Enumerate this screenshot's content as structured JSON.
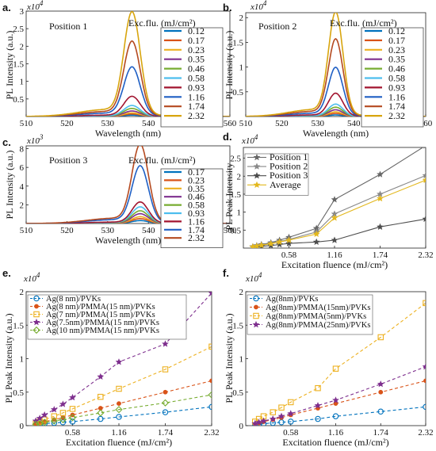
{
  "chart_data": [
    {
      "panel": "a.",
      "type": "line",
      "annotation": "Position 1",
      "xlabel": "Wavelength (nm)",
      "ylabel": "PL Intensity (a.u.)",
      "multiplier": "x10^4",
      "xlim": [
        510,
        560
      ],
      "ylim": [
        0,
        3
      ],
      "xticks": [
        "510",
        "520",
        "530",
        "540",
        "550",
        "560"
      ],
      "yticks": [
        {
          "v": 0.5,
          "label": "0.5"
        },
        {
          "v": 1,
          "label": "1"
        },
        {
          "v": 1.5,
          "label": "1.5"
        },
        {
          "v": 2,
          "label": "2"
        },
        {
          "v": 2.5,
          "label": "2.5"
        },
        {
          "v": 3,
          "label": "3"
        }
      ],
      "legend_title": "Exc.flu. (mJ/cm²)",
      "legend_position": "top-right",
      "peak_center": 536,
      "series": [
        {
          "name": "0.12",
          "color": "#0072BD",
          "peak": 0.04
        },
        {
          "name": "0.17",
          "color": "#D95319",
          "peak": 0.07
        },
        {
          "name": "0.23",
          "color": "#EDB120",
          "peak": 0.1
        },
        {
          "name": "0.35",
          "color": "#7E2F8E",
          "peak": 0.15
        },
        {
          "name": "0.46",
          "color": "#77AC30",
          "peak": 0.22
        },
        {
          "name": "0.58",
          "color": "#4DBEEE",
          "peak": 0.3
        },
        {
          "name": "0.93",
          "color": "#A2142F",
          "peak": 0.55
        },
        {
          "name": "1.16",
          "color": "#1F5FC4",
          "peak": 1.35
        },
        {
          "name": "1.74",
          "color": "#B4491F",
          "peak": 2.05
        },
        {
          "name": "2.32",
          "color": "#D8A50E",
          "peak": 2.85
        }
      ]
    },
    {
      "panel": "b.",
      "type": "line",
      "annotation": "Position 2",
      "xlabel": "Wavelength (nm)",
      "ylabel": "PL Intensity (a.u.)",
      "multiplier": "x10^4",
      "xlim": [
        510,
        560
      ],
      "ylim": [
        0,
        2.1
      ],
      "xticks": [
        "510",
        "520",
        "530",
        "540",
        "550",
        "560"
      ],
      "yticks": [
        {
          "v": 0.5,
          "label": "0.5"
        },
        {
          "v": 1,
          "label": "1"
        },
        {
          "v": 1.5,
          "label": "1.5"
        },
        {
          "v": 2,
          "label": "2"
        }
      ],
      "legend_title": "Exc.flu. (mJ/cm²)",
      "legend_position": "top-right",
      "peak_center": 535,
      "series": [
        {
          "name": "0.12",
          "color": "#0072BD",
          "peak": 0.03
        },
        {
          "name": "0.17",
          "color": "#D95319",
          "peak": 0.06
        },
        {
          "name": "0.23",
          "color": "#EDB120",
          "peak": 0.09
        },
        {
          "name": "0.35",
          "color": "#7E2F8E",
          "peak": 0.13
        },
        {
          "name": "0.46",
          "color": "#77AC30",
          "peak": 0.18
        },
        {
          "name": "0.58",
          "color": "#4DBEEE",
          "peak": 0.24
        },
        {
          "name": "0.93",
          "color": "#A2142F",
          "peak": 0.45
        },
        {
          "name": "1.16",
          "color": "#1F5FC4",
          "peak": 0.95
        },
        {
          "name": "1.74",
          "color": "#B4491F",
          "peak": 1.5
        },
        {
          "name": "2.32",
          "color": "#D8A50E",
          "peak": 2.02
        }
      ]
    },
    {
      "panel": "c.",
      "type": "line",
      "annotation": "Position 3",
      "xlabel": "Wavelength (nm)",
      "ylabel": "PL Intensity (a.u.)",
      "multiplier": "x10^3",
      "xlim": [
        510,
        560
      ],
      "ylim": [
        0,
        8.3
      ],
      "xticks": [
        "510",
        "520",
        "530",
        "540",
        "550",
        "560"
      ],
      "yticks": [
        {
          "v": 2,
          "label": "2"
        },
        {
          "v": 4,
          "label": "4"
        },
        {
          "v": 6,
          "label": "6"
        },
        {
          "v": 8,
          "label": "8"
        }
      ],
      "legend_title": "Exc.flu. (mJ/cm²)",
      "legend_position": "top-right",
      "peak_center": 538,
      "series": [
        {
          "name": "0.17",
          "color": "#0072BD",
          "peak": 0.3
        },
        {
          "name": "0.23",
          "color": "#D95319",
          "peak": 0.5
        },
        {
          "name": "0.35",
          "color": "#EDB120",
          "peak": 0.7
        },
        {
          "name": "0.46",
          "color": "#7E2F8E",
          "peak": 1.0
        },
        {
          "name": "0.58",
          "color": "#77AC30",
          "peak": 1.3
        },
        {
          "name": "0.93",
          "color": "#4DBEEE",
          "peak": 1.7
        },
        {
          "name": "1.16",
          "color": "#A2142F",
          "peak": 2.2
        },
        {
          "name": "1.74",
          "color": "#1F5FC4",
          "peak": 5.9
        },
        {
          "name": "2.32",
          "color": "#B4491F",
          "peak": 8.1
        }
      ]
    },
    {
      "panel": "d.",
      "type": "line",
      "xlabel": "Excitation fluence (mJ/cm²)",
      "ylabel": "PL Peak Intensity",
      "multiplier": "x10^4",
      "xlim": [
        0,
        2.32
      ],
      "ylim": [
        0,
        2.8
      ],
      "xticks": [
        "0.58",
        "1.16",
        "1.74",
        "2.32"
      ],
      "yticks": [
        {
          "v": 0.5,
          "label": "0.5"
        },
        {
          "v": 1,
          "label": "1"
        },
        {
          "v": 1.5,
          "label": "1.5"
        },
        {
          "v": 2,
          "label": "2"
        },
        {
          "v": 2.5,
          "label": "2.5"
        }
      ],
      "legend_position": "top-left",
      "x": [
        0.12,
        0.17,
        0.23,
        0.35,
        0.46,
        0.58,
        0.93,
        1.16,
        1.74,
        2.32
      ],
      "series": [
        {
          "name": "Position 1",
          "color": "#666666",
          "marker": "star",
          "values": [
            0.04,
            0.07,
            0.1,
            0.15,
            0.22,
            0.3,
            0.55,
            1.35,
            2.05,
            2.85
          ]
        },
        {
          "name": "Position 2",
          "color": "#888888",
          "marker": "star",
          "values": [
            0.03,
            0.06,
            0.09,
            0.13,
            0.18,
            0.24,
            0.45,
            0.95,
            1.5,
            2.02
          ]
        },
        {
          "name": "Position 3",
          "color": "#4D4D4D",
          "marker": "star",
          "values": [
            null,
            0.03,
            0.05,
            0.07,
            0.1,
            0.13,
            0.17,
            0.22,
            0.59,
            0.81
          ]
        },
        {
          "name": "Average",
          "color": "#E3B81E",
          "marker": "star",
          "values": [
            0.035,
            0.055,
            0.08,
            0.12,
            0.17,
            0.22,
            0.39,
            0.84,
            1.38,
            1.89
          ]
        }
      ]
    },
    {
      "panel": "e.",
      "type": "line",
      "xlabel": "Excitation fluence (mJ/cm²)",
      "ylabel": "PL Peak Intensity (a.u.)",
      "multiplier": "x10^4",
      "xlim": [
        0,
        2.32
      ],
      "ylim": [
        0,
        2
      ],
      "xticks": [
        "0.58",
        "1.16",
        "1.74",
        "2.32"
      ],
      "yticks": [
        {
          "v": 0,
          "label": "0"
        },
        {
          "v": 0.5,
          "label": "0.5"
        },
        {
          "v": 1,
          "label": "1"
        },
        {
          "v": 1.5,
          "label": "1.5"
        },
        {
          "v": 2,
          "label": "2"
        }
      ],
      "legend_position": "top-left",
      "x": [
        0.12,
        0.17,
        0.23,
        0.35,
        0.46,
        0.58,
        0.93,
        1.16,
        1.74,
        2.32
      ],
      "series": [
        {
          "name": "Ag(8 nm)/PVKs",
          "color": "#0072BD",
          "marker": "circle",
          "values": [
            0.01,
            0.02,
            0.03,
            0.04,
            0.05,
            0.06,
            0.1,
            0.13,
            0.2,
            0.28
          ]
        },
        {
          "name": "Ag(8 nm)/PMMA(15 nm)/PVKs",
          "color": "#D95319",
          "marker": "dot",
          "values": [
            0.02,
            0.04,
            0.06,
            0.09,
            0.12,
            0.16,
            0.26,
            0.33,
            0.5,
            0.67
          ]
        },
        {
          "name": "Ag(7 nm)/PMMA(15 nm)/PVKs",
          "color": "#EDB120",
          "marker": "square",
          "values": [
            0.03,
            0.06,
            0.09,
            0.14,
            0.19,
            0.25,
            0.43,
            0.55,
            0.84,
            1.18
          ]
        },
        {
          "name": "Ag(7.5nm)/PMMA(15 nm)/PVKs",
          "color": "#7E2F8E",
          "marker": "star",
          "values": [
            0.07,
            0.11,
            0.16,
            0.24,
            0.32,
            0.42,
            0.73,
            0.95,
            1.22,
            1.98
          ]
        },
        {
          "name": "Ag(10 nm)/PMMA(15 nm)/PVKs",
          "color": "#77AC30",
          "marker": "diamond",
          "values": [
            0.02,
            0.03,
            0.05,
            0.07,
            0.09,
            0.12,
            0.19,
            0.24,
            0.34,
            0.46
          ]
        }
      ]
    },
    {
      "panel": "f.",
      "type": "line",
      "xlabel": "Excitation fluence (mJ/cm²)",
      "ylabel": "PL Peak Intensity (a.u.)",
      "multiplier": "x10^4",
      "xlim": [
        0,
        2.32
      ],
      "ylim": [
        0,
        2
      ],
      "xticks": [
        "0.58",
        "1.16",
        "1.74",
        "2.32"
      ],
      "yticks": [
        {
          "v": 0,
          "label": "0"
        },
        {
          "v": 0.5,
          "label": "0.5"
        },
        {
          "v": 1,
          "label": "1"
        },
        {
          "v": 1.5,
          "label": "1.5"
        },
        {
          "v": 2,
          "label": "2"
        }
      ],
      "legend_position": "top-left",
      "x": [
        0.12,
        0.17,
        0.23,
        0.35,
        0.46,
        0.58,
        0.93,
        1.16,
        1.74,
        2.32
      ],
      "series": [
        {
          "name": "Ag(8nm)/PVKs",
          "color": "#0072BD",
          "marker": "circle",
          "values": [
            0.01,
            0.02,
            0.03,
            0.04,
            0.05,
            0.06,
            0.1,
            0.14,
            0.21,
            0.28
          ]
        },
        {
          "name": "Ag(8nm)/PMMA(15nm)/PVKs",
          "color": "#D95319",
          "marker": "dot",
          "values": [
            0.02,
            0.04,
            0.06,
            0.09,
            0.12,
            0.16,
            0.26,
            0.33,
            0.5,
            0.67
          ]
        },
        {
          "name": "Ag(8nm)/PMMA(5nm)/PVKs",
          "color": "#EDB120",
          "marker": "square",
          "values": [
            0.06,
            0.1,
            0.14,
            0.2,
            0.27,
            0.35,
            0.56,
            0.85,
            1.32,
            1.83
          ]
        },
        {
          "name": "Ag(8nm)/PMMA(25nm)/PVKs",
          "color": "#7E2F8E",
          "marker": "star",
          "values": [
            0.03,
            0.05,
            0.07,
            0.1,
            0.14,
            0.18,
            0.3,
            0.38,
            0.62,
            0.88
          ]
        }
      ]
    }
  ]
}
